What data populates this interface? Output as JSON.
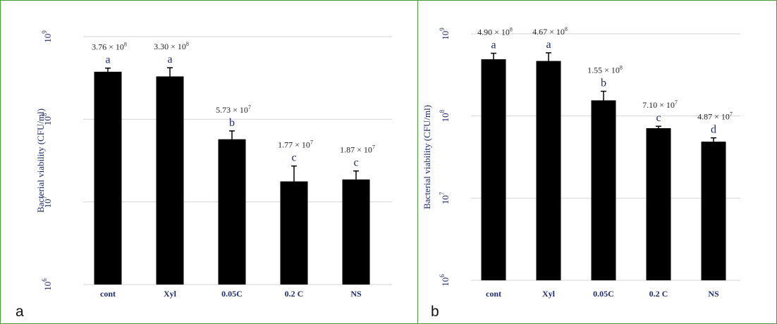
{
  "colors": {
    "bar": "#000000",
    "axis_label": "#1f2d6b",
    "tick": "#1f2d6b",
    "annotation": "#222222",
    "letter": "#1f2d6b",
    "grid": "#d4d4d4",
    "frame": "#4a9a3c"
  },
  "chart_data": [
    {
      "panel": "a",
      "type": "bar",
      "ylabel": "Bacterial viability (CFU/ml)",
      "yscale": "log",
      "ylim": [
        1000000,
        1000000000
      ],
      "yticks": [
        {
          "base": "10",
          "exp": "6"
        },
        {
          "base": "10",
          "exp": "7"
        },
        {
          "base": "10",
          "exp": "8"
        },
        {
          "base": "10",
          "exp": "9"
        }
      ],
      "grid": true,
      "categories": [
        "cont",
        "Xyl",
        "0.05C",
        "0.2 C",
        "NS"
      ],
      "values": [
        376000000,
        330000000,
        57300000,
        17700000,
        18700000
      ],
      "errors": [
        40000000,
        90000000,
        15000000,
        9500000,
        5000000
      ],
      "value_labels": [
        {
          "mantissa": "3.76 × 10",
          "exp": "8"
        },
        {
          "mantissa": "3.30 × 10",
          "exp": "8"
        },
        {
          "mantissa": "5.73 × 10",
          "exp": "7"
        },
        {
          "mantissa": "1.77 × 10",
          "exp": "7"
        },
        {
          "mantissa": "1.87 × 10",
          "exp": "7"
        }
      ],
      "letters": [
        "a",
        "a",
        "b",
        "c",
        "c"
      ]
    },
    {
      "panel": "b",
      "type": "bar",
      "ylabel": "Bacterial viability (CFU/ml)",
      "yscale": "log",
      "ylim": [
        1000000,
        1000000000
      ],
      "yticks": [
        {
          "base": "10",
          "exp": "6"
        },
        {
          "base": "10",
          "exp": "7"
        },
        {
          "base": "10",
          "exp": "8"
        },
        {
          "base": "10",
          "exp": "9"
        }
      ],
      "grid": true,
      "categories": [
        "cont",
        "Xyl",
        "0.05C",
        "0.2 C",
        "NS"
      ],
      "values": [
        490000000,
        467000000,
        155000000,
        71000000,
        48700000
      ],
      "errors": [
        90000000,
        120000000,
        45000000,
        4000000,
        5500000
      ],
      "value_labels": [
        {
          "mantissa": "4.90 × 10",
          "exp": "8"
        },
        {
          "mantissa": "4.67 × 10",
          "exp": "8"
        },
        {
          "mantissa": "1.55 × 10",
          "exp": "8"
        },
        {
          "mantissa": "7.10 × 10",
          "exp": "7"
        },
        {
          "mantissa": "4.87 × 10",
          "exp": "7"
        }
      ],
      "letters": [
        "a",
        "a",
        "b",
        "c",
        "d"
      ]
    }
  ]
}
